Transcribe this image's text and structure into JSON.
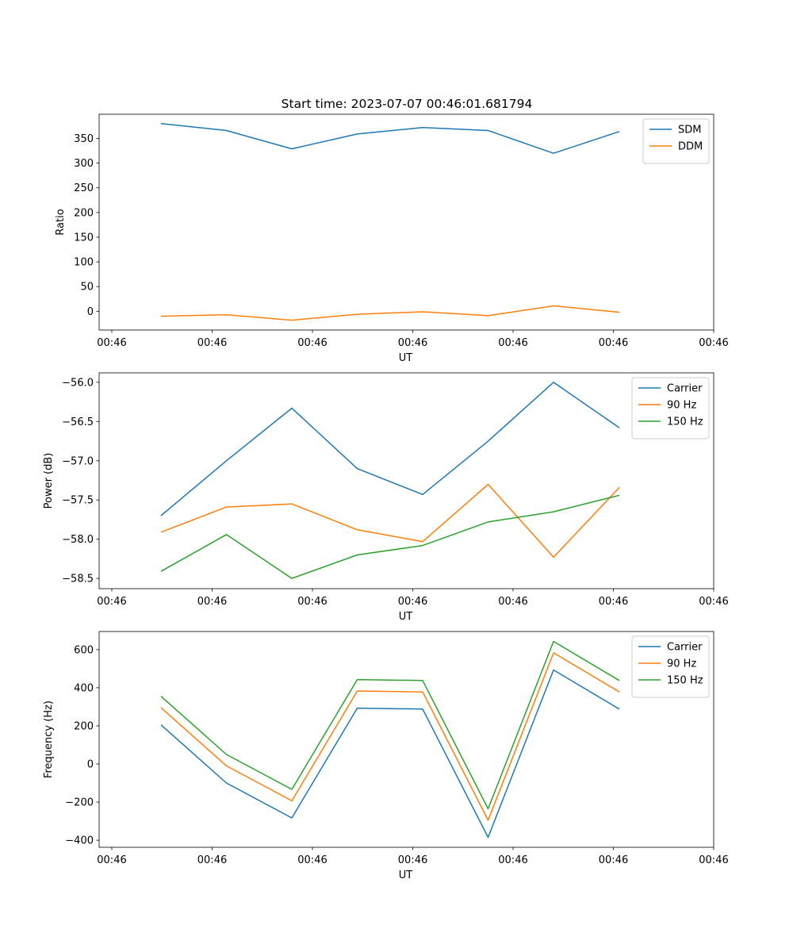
{
  "figure_title": "Start time: 2023-07-07 00:46:01.681794",
  "chart_data": [
    {
      "type": "line",
      "title": "Start time: 2023-07-07 00:46:01.681794",
      "xlabel": "UT",
      "ylabel": "Ratio",
      "x_tick_labels": [
        "00:46",
        "00:46",
        "00:46",
        "00:46",
        "00:46",
        "00:46",
        "00:46"
      ],
      "y_ticks": [
        0,
        50,
        100,
        150,
        200,
        250,
        300,
        350
      ],
      "y_tick_labels": [
        "0",
        "50",
        "100",
        "150",
        "200",
        "250",
        "300",
        "350"
      ],
      "ylim": [
        -38,
        399
      ],
      "legend_position": "top-right",
      "series": [
        {
          "name": "SDM",
          "color": "#1f77b4",
          "values": [
            380,
            366,
            329,
            359,
            372,
            366,
            320,
            364
          ]
        },
        {
          "name": "DDM",
          "color": "#ff7f0e",
          "values": [
            -10,
            -7,
            -18,
            -6,
            -1,
            -9,
            11,
            -2
          ]
        }
      ]
    },
    {
      "type": "line",
      "title": "",
      "xlabel": "UT",
      "ylabel": "Power (dB)",
      "x_tick_labels": [
        "00:46",
        "00:46",
        "00:46",
        "00:46",
        "00:46",
        "00:46",
        "00:46"
      ],
      "y_ticks": [
        -58.5,
        -58.0,
        -57.5,
        -57.0,
        -56.5,
        -56.0
      ],
      "y_tick_labels": [
        "−58.5",
        "−58.0",
        "−57.5",
        "−57.0",
        "−56.5",
        "−56.0"
      ],
      "ylim": [
        -58.63,
        -55.88
      ],
      "legend_position": "top-right",
      "series": [
        {
          "name": "Carrier",
          "color": "#1f77b4",
          "values": [
            -57.7,
            -57.0,
            -56.33,
            -57.1,
            -57.43,
            -56.75,
            -56.0,
            -56.58
          ]
        },
        {
          "name": "90 Hz",
          "color": "#ff7f0e",
          "values": [
            -57.91,
            -57.59,
            -57.55,
            -57.88,
            -58.03,
            -57.3,
            -58.23,
            -57.34
          ]
        },
        {
          "name": "150 Hz",
          "color": "#2ca02c",
          "values": [
            -58.41,
            -57.94,
            -58.5,
            -58.2,
            -58.08,
            -57.78,
            -57.65,
            -57.44
          ]
        }
      ]
    },
    {
      "type": "line",
      "title": "",
      "xlabel": "UT",
      "ylabel": "Frequency (Hz)",
      "x_tick_labels": [
        "00:46",
        "00:46",
        "00:46",
        "00:46",
        "00:46",
        "00:46",
        "00:46"
      ],
      "y_ticks": [
        -400,
        -200,
        0,
        200,
        400,
        600
      ],
      "y_tick_labels": [
        "−400",
        "−200",
        "0",
        "200",
        "400",
        "600"
      ],
      "ylim": [
        -437,
        695
      ],
      "legend_position": "top-right",
      "series": [
        {
          "name": "Carrier",
          "color": "#1f77b4",
          "values": [
            205,
            -100,
            -283,
            293,
            288,
            -385,
            493,
            288
          ]
        },
        {
          "name": "90 Hz",
          "color": "#ff7f0e",
          "values": [
            295,
            -10,
            -193,
            383,
            378,
            -295,
            583,
            378
          ]
        },
        {
          "name": "150 Hz",
          "color": "#2ca02c",
          "values": [
            355,
            50,
            -133,
            443,
            438,
            -235,
            643,
            438
          ]
        }
      ]
    }
  ]
}
